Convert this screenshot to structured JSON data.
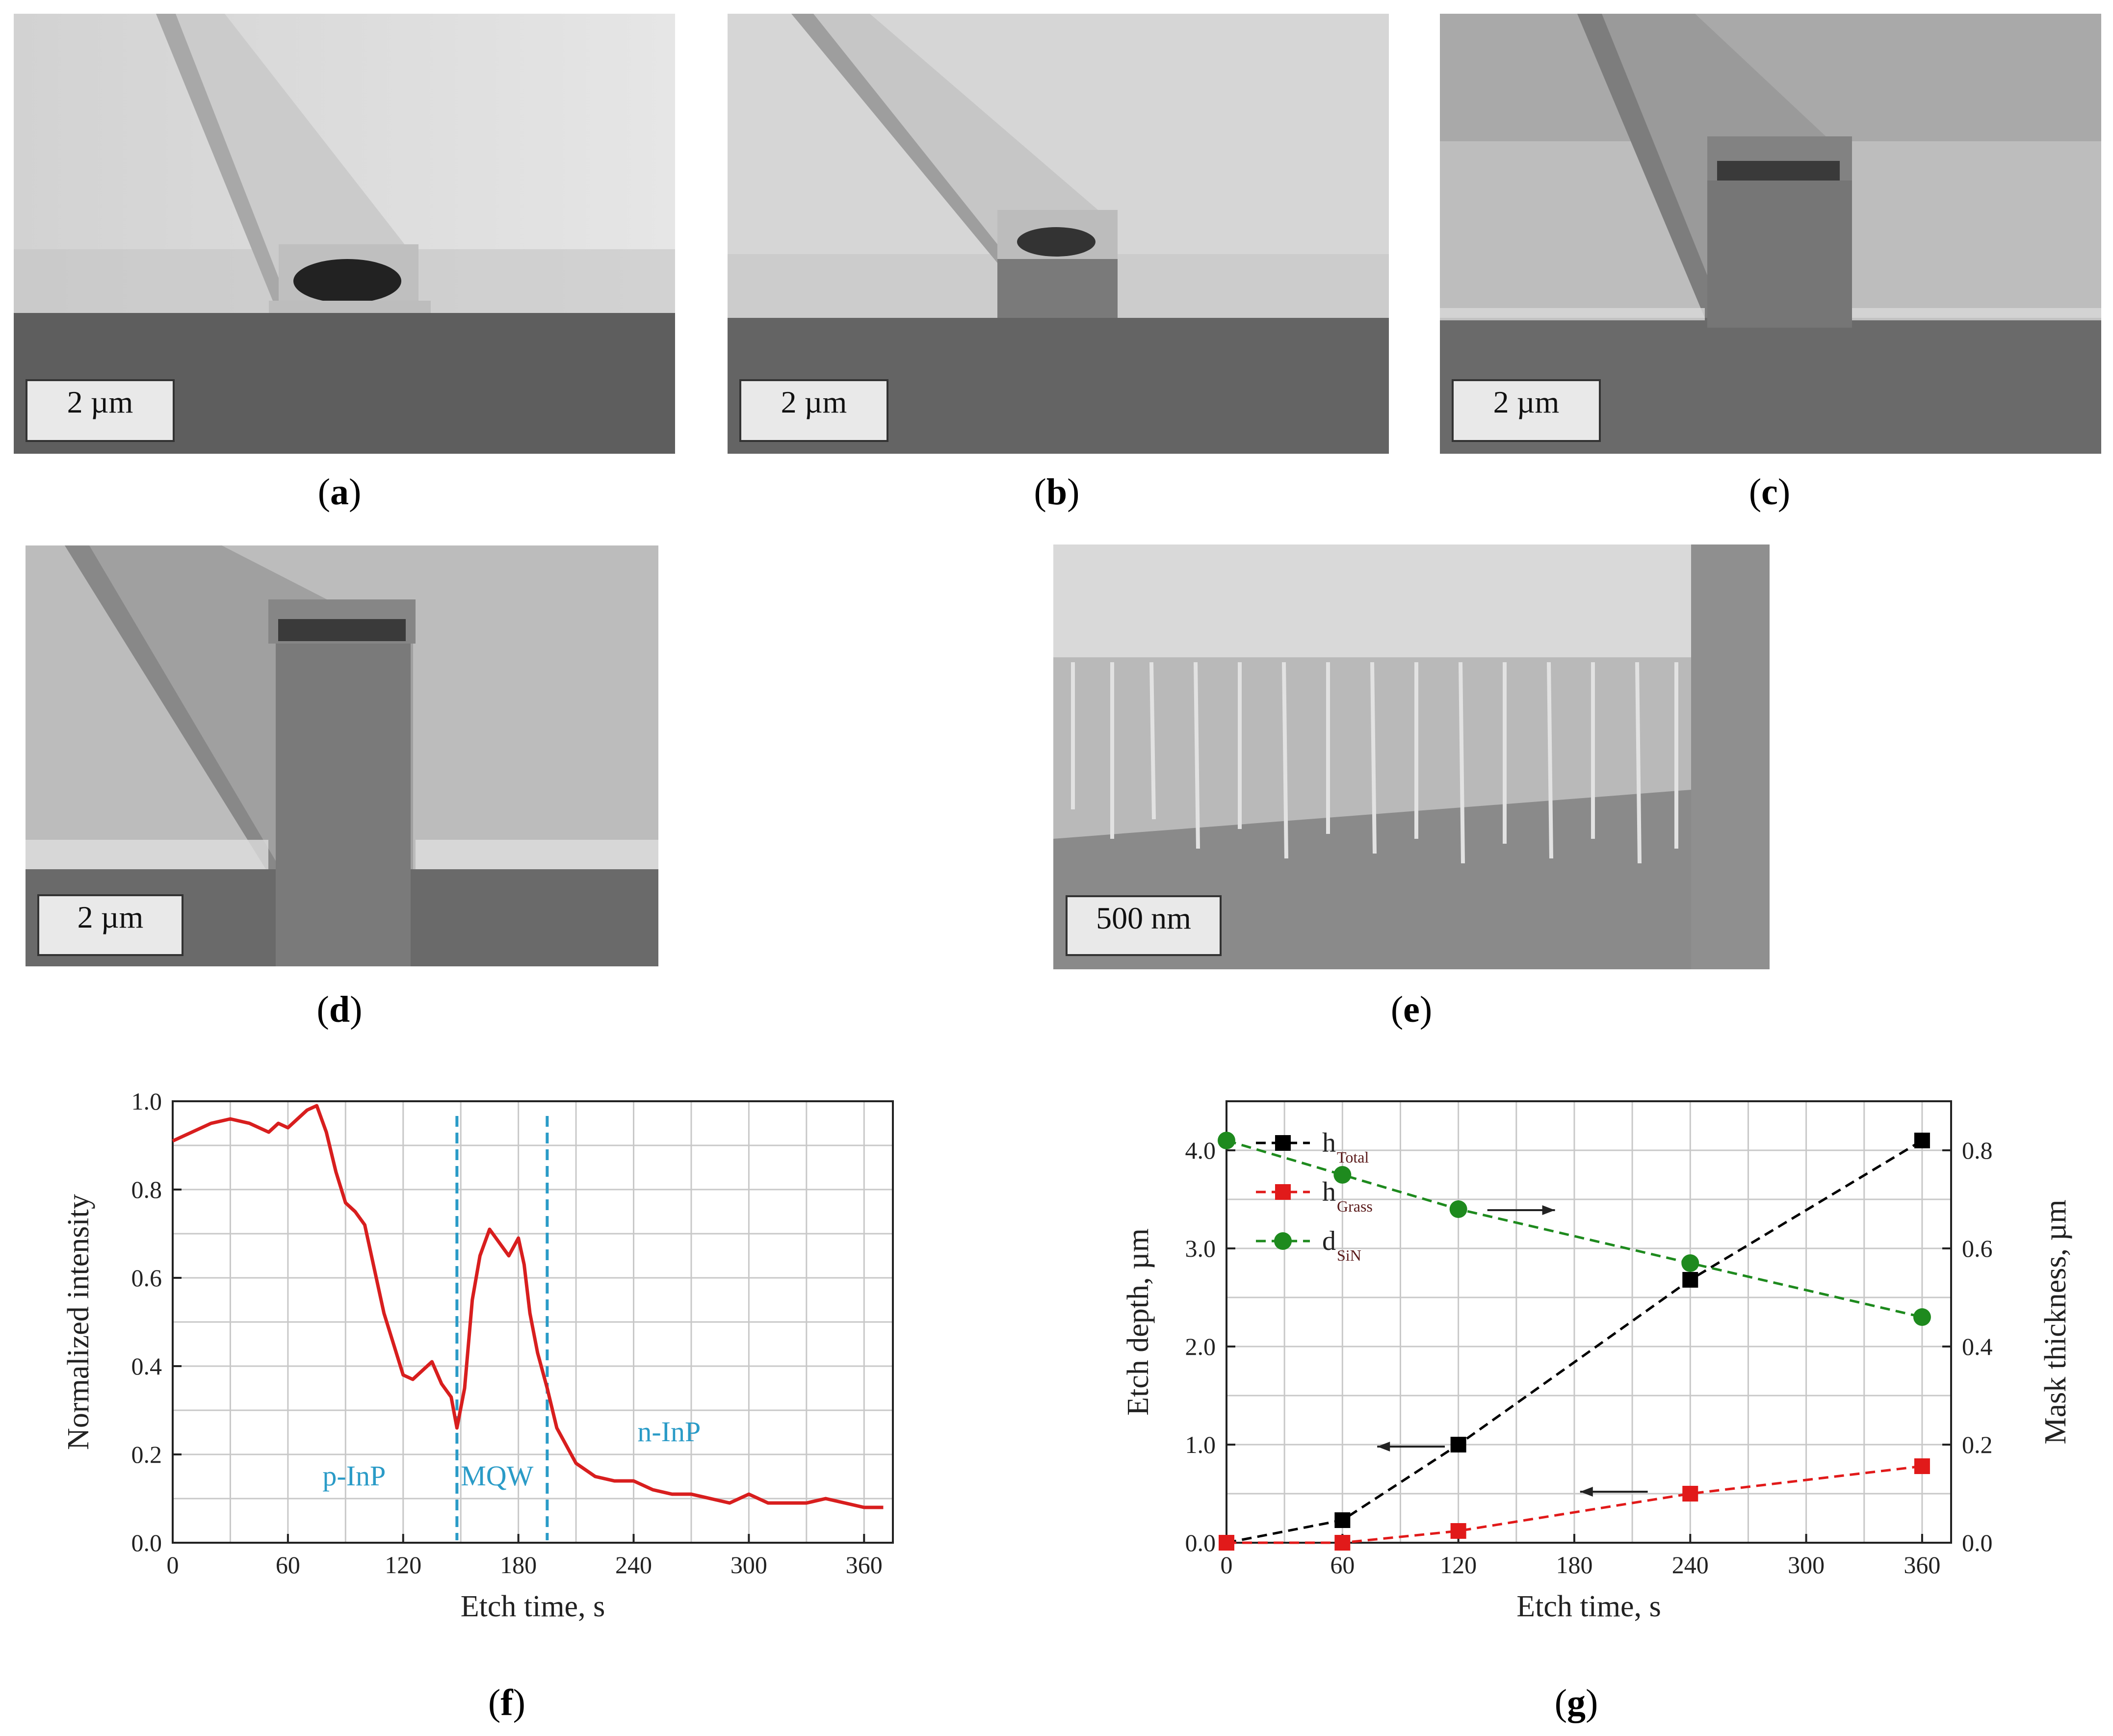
{
  "figures": {
    "a": {
      "caption_letter": "a",
      "scale_label": "2 µm"
    },
    "b": {
      "caption_letter": "b",
      "scale_label": "2 µm"
    },
    "c": {
      "caption_letter": "c",
      "scale_label": "2 µm"
    },
    "d": {
      "caption_letter": "d",
      "scale_label": "2 µm"
    },
    "e": {
      "caption_letter": "e",
      "scale_label": "500 nm"
    },
    "f": {
      "caption_letter": "f"
    },
    "g": {
      "caption_letter": "g"
    }
  },
  "chart_data": [
    {
      "type": "line",
      "panel": "f",
      "xlabel": "Etch time, s",
      "ylabel": "Normalized intensity",
      "xlim": [
        0,
        375
      ],
      "ylim": [
        0,
        1.0
      ],
      "x_ticks": [
        "0",
        "60",
        "120",
        "180",
        "240",
        "300",
        "360"
      ],
      "y_ticks": [
        "0.0",
        "0.2",
        "0.4",
        "0.6",
        "0.8",
        "1.0"
      ],
      "grid": true,
      "line_color": "#d81e1e",
      "marker_color": "#2a9bc7",
      "vlines": [
        148,
        195
      ],
      "annotations": [
        "p-InP",
        "MQW",
        "n-InP"
      ],
      "series": [
        {
          "x": [
            0,
            10,
            20,
            30,
            40,
            45,
            50,
            55,
            60,
            65,
            70,
            75,
            80,
            85,
            90,
            95,
            100,
            105,
            110,
            115,
            120,
            125,
            130,
            135,
            140,
            145,
            148,
            152,
            156,
            160,
            165,
            170,
            175,
            180,
            183,
            186,
            190,
            195,
            200,
            210,
            220,
            230,
            240,
            250,
            260,
            270,
            280,
            290,
            300,
            310,
            320,
            330,
            340,
            350,
            360,
            370
          ],
          "y": [
            0.91,
            0.93,
            0.95,
            0.96,
            0.95,
            0.94,
            0.93,
            0.95,
            0.94,
            0.96,
            0.98,
            0.99,
            0.93,
            0.84,
            0.77,
            0.75,
            0.72,
            0.62,
            0.52,
            0.45,
            0.38,
            0.37,
            0.39,
            0.41,
            0.36,
            0.33,
            0.26,
            0.35,
            0.55,
            0.65,
            0.71,
            0.68,
            0.65,
            0.69,
            0.63,
            0.52,
            0.43,
            0.35,
            0.26,
            0.18,
            0.15,
            0.14,
            0.14,
            0.12,
            0.11,
            0.11,
            0.1,
            0.09,
            0.11,
            0.09,
            0.09,
            0.09,
            0.1,
            0.09,
            0.08,
            0.08
          ]
        }
      ]
    },
    {
      "type": "scatter",
      "panel": "g",
      "xlabel": "Etch time, s",
      "ylabel": "Etch depth, µm",
      "y2label": "Mask thickness, µm",
      "xlim": [
        0,
        375
      ],
      "ylim": [
        0,
        4.5
      ],
      "y2lim": [
        0,
        0.9
      ],
      "x_ticks": [
        "0",
        "60",
        "120",
        "180",
        "240",
        "300",
        "360"
      ],
      "y_ticks": [
        "0.0",
        "1.0",
        "2.0",
        "3.0",
        "4.0"
      ],
      "y2_ticks": [
        "0.0",
        "0.2",
        "0.4",
        "0.6",
        "0.8"
      ],
      "grid": true,
      "legend_position": "upper-left",
      "series": [
        {
          "name": "h",
          "sub": "Total",
          "color": "#000000",
          "marker": "square",
          "axis": "left",
          "x": [
            0,
            60,
            120,
            240,
            360
          ],
          "y": [
            0.0,
            0.23,
            1.0,
            2.68,
            4.1
          ]
        },
        {
          "name": "h",
          "sub": "Grass",
          "color": "#e11a1a",
          "marker": "square",
          "axis": "left",
          "x": [
            0,
            60,
            120,
            240,
            360
          ],
          "y": [
            0.0,
            0.0,
            0.12,
            0.5,
            0.78
          ]
        },
        {
          "name": "d",
          "sub": "SiN",
          "color": "#1e8a1e",
          "marker": "circle",
          "axis": "right",
          "x": [
            0,
            60,
            120,
            240,
            360
          ],
          "y": [
            0.82,
            0.75,
            0.68,
            0.57,
            0.46
          ]
        }
      ]
    }
  ]
}
